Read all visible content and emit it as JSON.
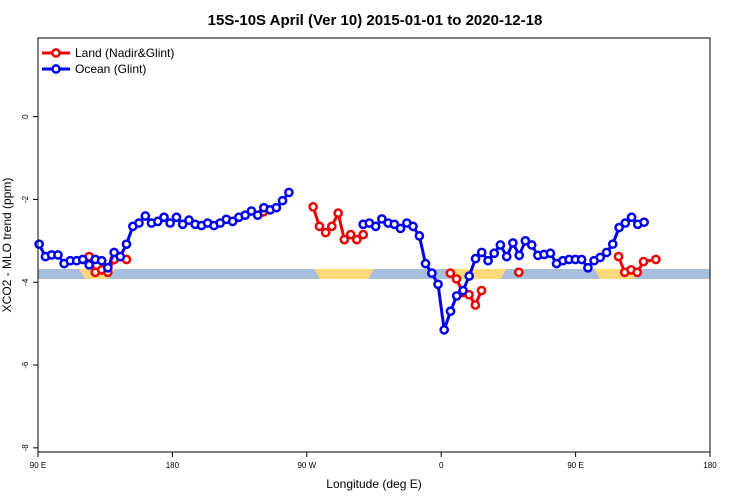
{
  "chart_data": {
    "type": "line",
    "title": "15S-10S April (Ver 10)   2015-01-01 to 2020-12-18",
    "xlabel": "Longitude (deg E)",
    "ylabel": "XCO2 - MLO trend (ppm)",
    "xlim": [
      90,
      450
    ],
    "ylim": [
      -8.1,
      1.9
    ],
    "x_ticks": [
      {
        "value": 90,
        "label": "90 E"
      },
      {
        "value": 162,
        "label": "180"
      },
      {
        "value": 234,
        "label": "90 W"
      },
      {
        "value": 306,
        "label": "0"
      },
      {
        "value": 378,
        "label": "90 E"
      },
      {
        "value": 450,
        "label": "180"
      }
    ],
    "y_ticks": [
      {
        "value": 0,
        "label": "0"
      },
      {
        "value": -2,
        "label": "-2"
      },
      {
        "value": -4,
        "label": "-4"
      },
      {
        "value": -6,
        "label": "-6"
      },
      {
        "value": -8,
        "label": "-8"
      }
    ],
    "legend_position": "top-left",
    "surface_band": {
      "y_range": [
        -3.68,
        -3.92
      ],
      "ocean_color": "#a7bfdc",
      "land_color": "#ffd97a",
      "land_segments": [
        [
          112,
          131
        ],
        [
          238,
          270
        ],
        [
          310,
          341
        ],
        [
          388,
          412
        ]
      ]
    },
    "series": [
      {
        "name": "Land (Nadir&Glint)",
        "color": "#ee0000",
        "segments": [
          [
            [
              117.4,
              -3.38
            ],
            [
              120.7,
              -3.76
            ],
            [
              124.1,
              -3.7
            ],
            [
              127.4,
              -3.76
            ],
            [
              130.8,
              -3.45
            ],
            [
              137.4,
              -3.45
            ]
          ],
          [
            [
              210.7,
              -2.3
            ]
          ],
          [
            [
              237.4,
              -2.18
            ],
            [
              240.8,
              -2.65
            ],
            [
              244.1,
              -2.8
            ],
            [
              247.4,
              -2.65
            ],
            [
              250.8,
              -2.33
            ],
            [
              254.1,
              -2.97
            ],
            [
              257.5,
              -2.85
            ],
            [
              260.8,
              -2.97
            ],
            [
              264.2,
              -2.85
            ]
          ],
          [
            [
              310.9,
              -3.78
            ],
            [
              314.2,
              -3.92
            ],
            [
              317.6,
              -4.25
            ],
            [
              320.9,
              -4.3
            ],
            [
              324.3,
              -4.55
            ],
            [
              327.6,
              -4.2
            ]
          ],
          [
            [
              347.6,
              -3.76
            ]
          ],
          [
            [
              401.0,
              -3.38
            ],
            [
              404.3,
              -3.76
            ],
            [
              407.7,
              -3.7
            ],
            [
              411.0,
              -3.76
            ],
            [
              414.4,
              -3.5
            ],
            [
              421.0,
              -3.45
            ]
          ]
        ]
      },
      {
        "name": "Ocean (Glint)",
        "color": "#0000ee",
        "segments": [
          [
            [
              90.6,
              -3.08
            ],
            [
              94.0,
              -3.38
            ],
            [
              97.3,
              -3.34
            ],
            [
              100.7,
              -3.34
            ],
            [
              104.0,
              -3.55
            ],
            [
              107.3,
              -3.48
            ],
            [
              110.7,
              -3.48
            ],
            [
              114.0,
              -3.45
            ],
            [
              117.4,
              -3.58
            ],
            [
              120.7,
              -3.45
            ],
            [
              124.1,
              -3.48
            ],
            [
              127.4,
              -3.65
            ],
            [
              130.8,
              -3.28
            ],
            [
              134.1,
              -3.38
            ],
            [
              137.4,
              -3.08
            ],
            [
              140.8,
              -2.65
            ],
            [
              144.1,
              -2.57
            ],
            [
              147.5,
              -2.4
            ],
            [
              150.8,
              -2.57
            ],
            [
              154.2,
              -2.53
            ],
            [
              157.5,
              -2.43
            ],
            [
              160.8,
              -2.57
            ],
            [
              164.2,
              -2.43
            ],
            [
              167.5,
              -2.6
            ],
            [
              170.9,
              -2.5
            ],
            [
              174.2,
              -2.6
            ],
            [
              177.6,
              -2.63
            ],
            [
              180.9,
              -2.57
            ],
            [
              184.3,
              -2.63
            ],
            [
              187.6,
              -2.57
            ],
            [
              190.9,
              -2.48
            ],
            [
              194.3,
              -2.53
            ],
            [
              197.6,
              -2.43
            ],
            [
              201.0,
              -2.38
            ],
            [
              204.3,
              -2.28
            ],
            [
              207.7,
              -2.38
            ],
            [
              211.0,
              -2.2
            ],
            [
              214.4,
              -2.25
            ],
            [
              217.7,
              -2.2
            ],
            [
              221.0,
              -2.03
            ],
            [
              224.4,
              -1.83
            ]
          ],
          [
            [
              264.2,
              -2.6
            ],
            [
              267.5,
              -2.57
            ],
            [
              270.9,
              -2.65
            ],
            [
              274.2,
              -2.47
            ],
            [
              277.6,
              -2.57
            ],
            [
              280.9,
              -2.6
            ],
            [
              284.2,
              -2.7
            ],
            [
              287.6,
              -2.57
            ],
            [
              290.9,
              -2.65
            ],
            [
              294.3,
              -2.88
            ],
            [
              297.6,
              -3.55
            ],
            [
              301.0,
              -3.78
            ],
            [
              304.3,
              -4.05
            ],
            [
              307.6,
              -5.15
            ],
            [
              311.0,
              -4.7
            ],
            [
              314.3,
              -4.33
            ],
            [
              317.7,
              -4.2
            ],
            [
              321.0,
              -3.85
            ],
            [
              324.4,
              -3.43
            ],
            [
              327.7,
              -3.28
            ],
            [
              331.1,
              -3.48
            ],
            [
              334.4,
              -3.3
            ],
            [
              337.7,
              -3.1
            ],
            [
              341.1,
              -3.38
            ],
            [
              344.4,
              -3.05
            ],
            [
              347.8,
              -3.35
            ],
            [
              351.1,
              -3.0
            ],
            [
              354.5,
              -3.1
            ],
            [
              357.8,
              -3.35
            ],
            [
              361.1,
              -3.33
            ],
            [
              364.5,
              -3.3
            ],
            [
              367.8,
              -3.55
            ],
            [
              371.2,
              -3.48
            ],
            [
              374.5,
              -3.45
            ],
            [
              377.9,
              -3.45
            ],
            [
              381.2,
              -3.45
            ],
            [
              384.6,
              -3.65
            ],
            [
              387.9,
              -3.48
            ],
            [
              391.2,
              -3.4
            ],
            [
              394.6,
              -3.28
            ],
            [
              397.9,
              -3.08
            ],
            [
              401.3,
              -2.68
            ],
            [
              404.6,
              -2.57
            ],
            [
              408.0,
              -2.43
            ],
            [
              411.3,
              -2.6
            ],
            [
              414.7,
              -2.55
            ]
          ]
        ]
      }
    ]
  }
}
